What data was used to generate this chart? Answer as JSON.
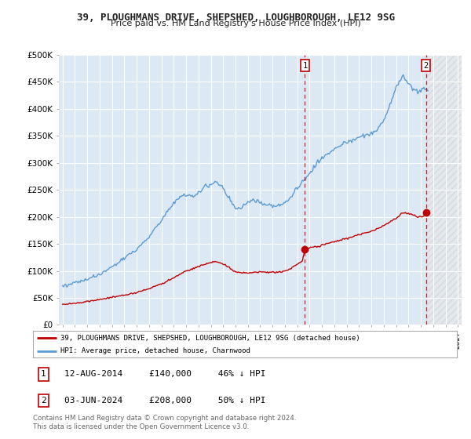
{
  "title": "39, PLOUGHMANS DRIVE, SHEPSHED, LOUGHBOROUGH, LE12 9SG",
  "subtitle": "Price paid vs. HM Land Registry's House Price Index (HPI)",
  "background_color": "#ffffff",
  "plot_bg_color": "#dce9f5",
  "grid_color": "#ffffff",
  "hpi_color": "#5b9bd5",
  "price_color": "#c00000",
  "marker1_date_x": 2014.62,
  "marker1_y": 140000,
  "marker2_date_x": 2024.42,
  "marker2_y": 208000,
  "legend_label_price": "39, PLOUGHMANS DRIVE, SHEPSHED, LOUGHBOROUGH, LE12 9SG (detached house)",
  "legend_label_hpi": "HPI: Average price, detached house, Charnwood",
  "annotation1_text": "12-AUG-2014     £140,000     46% ↓ HPI",
  "annotation2_text": "03-JUN-2024     £208,000     50% ↓ HPI",
  "footer": "Contains HM Land Registry data © Crown copyright and database right 2024.\nThis data is licensed under the Open Government Licence v3.0.",
  "title_fontsize": 9,
  "subtitle_fontsize": 8,
  "ylim": [
    0,
    500000
  ],
  "xlim_left": 1994.7,
  "xlim_right": 2027.3
}
